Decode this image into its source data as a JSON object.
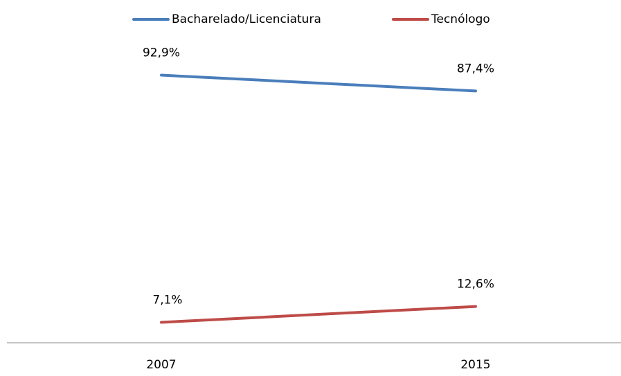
{
  "chart_data": {
    "type": "line",
    "categories": [
      "2007",
      "2015"
    ],
    "series": [
      {
        "name": "Bacharelado/Licenciatura",
        "color": "#4a7ebb",
        "values": [
          92.9,
          87.4
        ],
        "value_labels": [
          "92,9%",
          "87,4%"
        ]
      },
      {
        "name": "Tecnólogo",
        "color": "#be4b48",
        "values": [
          7.1,
          12.6
        ],
        "value_labels": [
          "7,1%",
          "12,6%"
        ]
      }
    ],
    "ylim": [
      0,
      100
    ],
    "legend": "top"
  }
}
